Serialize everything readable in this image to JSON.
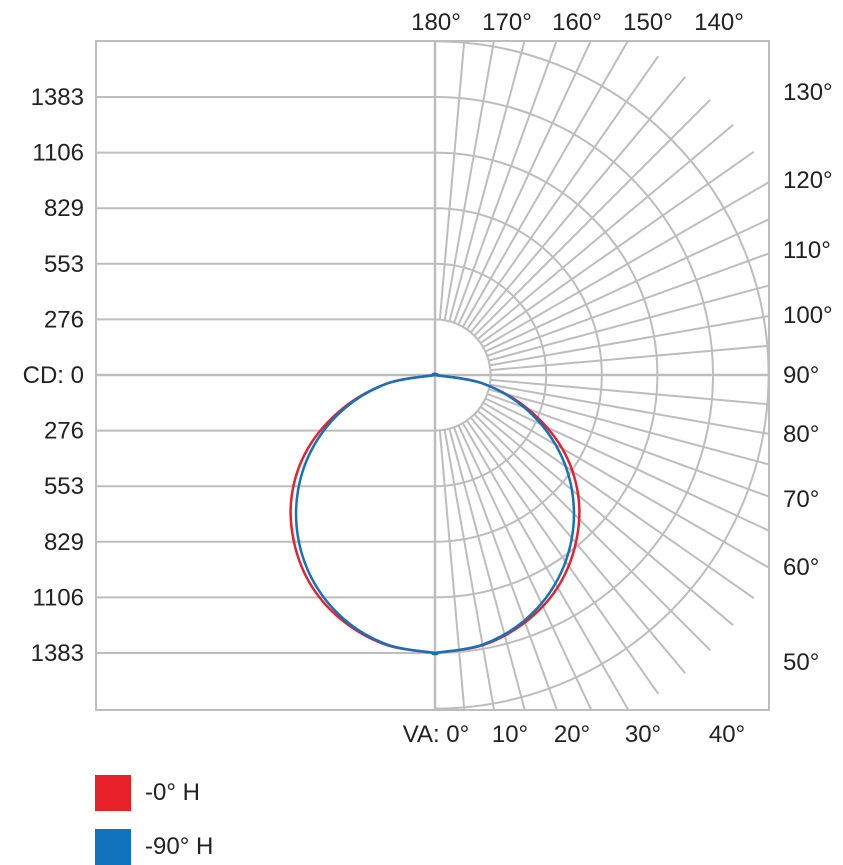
{
  "chart_data": {
    "type": "polar",
    "title": "",
    "units_label": "CD: 0",
    "angle_axis_label": "VA: 0°",
    "radial_ticks": [
      1383,
      1106,
      829,
      553,
      276,
      "CD: 0",
      276,
      553,
      829,
      1106,
      1383
    ],
    "angle_ticks_bottom": [
      "VA: 0°",
      "10°",
      "20°",
      "30°",
      "40°"
    ],
    "angle_ticks_right": [
      "50°",
      "60°",
      "70°",
      "80°",
      "90°",
      "100°",
      "110°",
      "120°",
      "130°"
    ],
    "angle_ticks_top": [
      "180°",
      "170°",
      "160°",
      "150°",
      "140°"
    ],
    "rmax": 1383,
    "series": [
      {
        "name": "-0° H",
        "color": "#e8202a",
        "angles": [
          0,
          10,
          20,
          30,
          40,
          50,
          60,
          70,
          80,
          90
        ],
        "values": [
          1383,
          1365,
          1310,
          1220,
          1090,
          930,
          730,
          490,
          240,
          0
        ]
      },
      {
        "name": "-90° H",
        "color": "#1172bd",
        "angles": [
          0,
          10,
          20,
          30,
          40,
          50,
          60,
          70,
          80,
          90
        ],
        "values": [
          1383,
          1362,
          1300,
          1198,
          1059,
          889,
          692,
          473,
          240,
          0
        ]
      }
    ]
  },
  "legend": {
    "items": [
      {
        "label": "-0° H",
        "color": "#e8202a"
      },
      {
        "label": "-90° H",
        "color": "#1172bd"
      }
    ]
  }
}
